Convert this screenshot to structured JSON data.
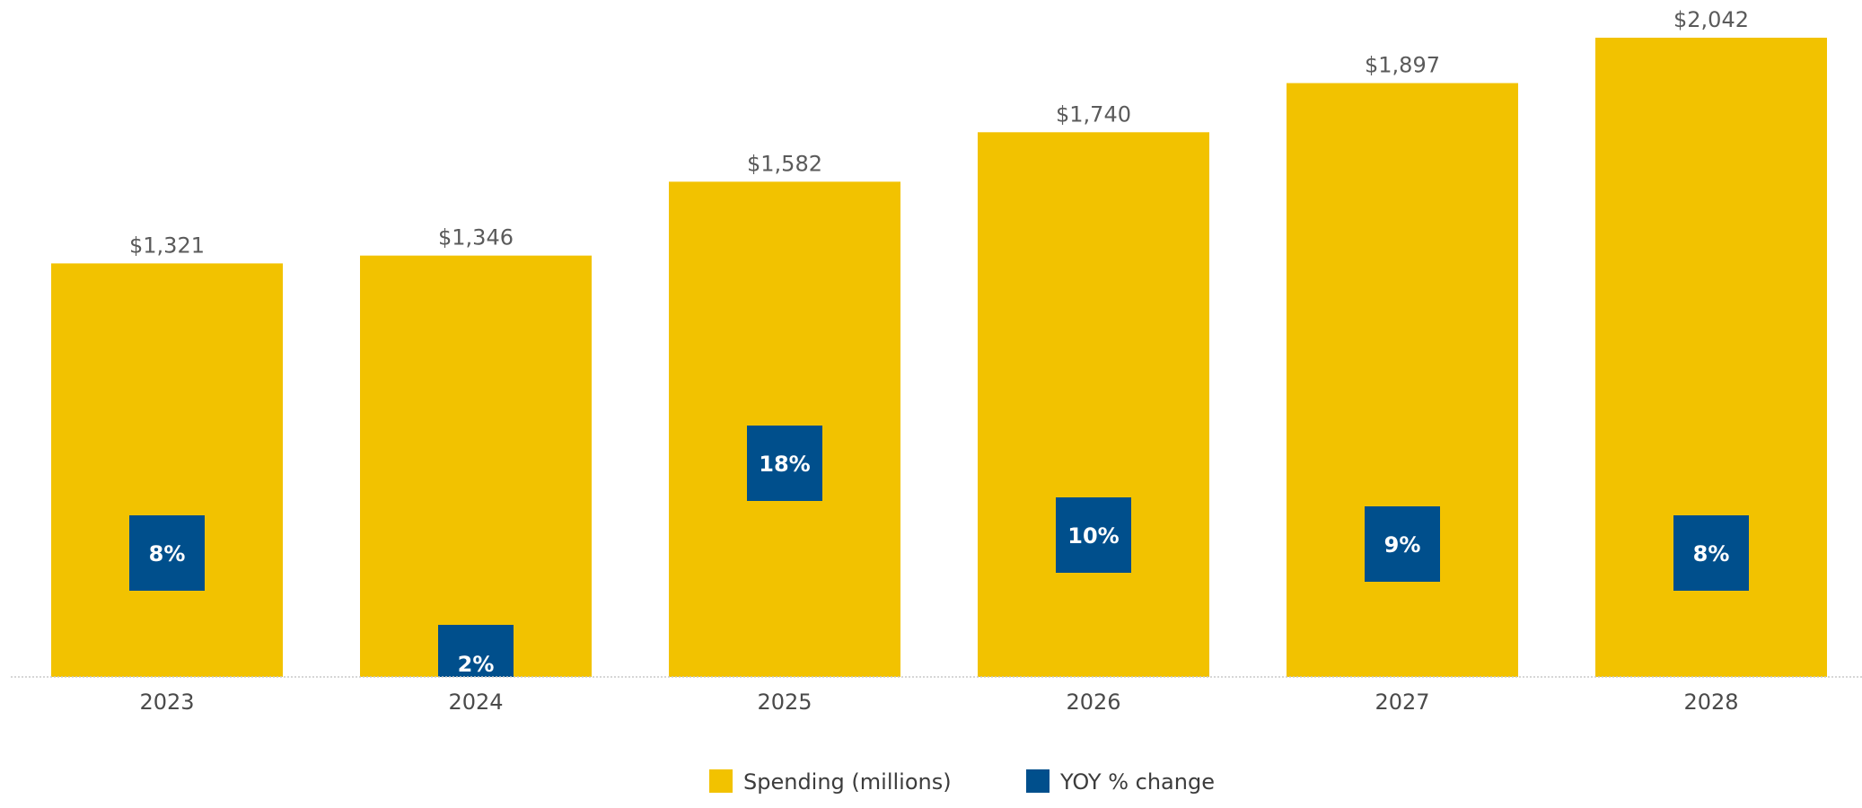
{
  "chart_data": {
    "type": "bar",
    "categories": [
      "2023",
      "2024",
      "2025",
      "2026",
      "2027",
      "2028"
    ],
    "series": [
      {
        "name": "Spending (millions)",
        "values": [
          1321,
          1346,
          1582,
          1740,
          1897,
          2042
        ],
        "labels": [
          "$1,321",
          "$1,346",
          "$1,582",
          "$1,740",
          "$1,897",
          "$2,042"
        ],
        "color": "#F2C200"
      },
      {
        "name": "YOY % change",
        "values": [
          8,
          2,
          18,
          10,
          9,
          8
        ],
        "labels": [
          "8%",
          "2%",
          "18%",
          "10%",
          "9%",
          "8%"
        ],
        "color": "#004F8C"
      }
    ],
    "ylim": [
      0,
      2042
    ],
    "grid": false,
    "legend_position": "bottom-center"
  }
}
